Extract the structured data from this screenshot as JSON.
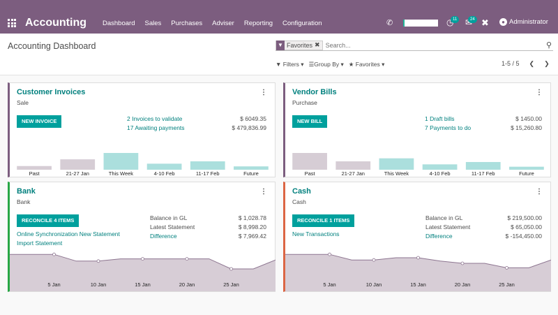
{
  "topbar": {
    "app_title": "Accounting",
    "nav": [
      "Dashboard",
      "Sales",
      "Purchases",
      "Adviser",
      "Reporting",
      "Configuration"
    ],
    "activity_count": "11",
    "message_count": "24",
    "user": "Administrator"
  },
  "control_panel": {
    "title": "Accounting Dashboard",
    "facet": "Favorites",
    "search_placeholder": "Search...",
    "filters": "Filters",
    "group_by": "Group By",
    "favorites": "Favorites",
    "pager": "1-5 / 5"
  },
  "journals": {
    "customer_invoices": {
      "title": "Customer Invoices",
      "subtitle": "Sale",
      "button": "NEW INVOICE",
      "link1": "2 Invoices to validate",
      "amount1": "$ 6049.35",
      "link2": "17 Awaiting payments",
      "amount2": "$ 479,836.99",
      "chart_data": {
        "type": "bar",
        "categories": [
          "Past",
          "21-27 Jan",
          "This Week",
          "4-10 Feb",
          "11-17 Feb",
          "Future"
        ],
        "values": [
          0.22,
          0.62,
          1.0,
          0.36,
          0.5,
          0.2
        ],
        "bar_colors": [
          "#d6cdd5",
          "#d6cdd5",
          "#abdfdd",
          "#abdfdd",
          "#abdfdd",
          "#abdfdd"
        ]
      }
    },
    "vendor_bills": {
      "title": "Vendor Bills",
      "subtitle": "Purchase",
      "button": "NEW BILL",
      "link1": "1 Draft bills",
      "amount1": "$ 1450.00",
      "link2": "7 Payments to do",
      "amount2": "$ 15,260.80",
      "chart_data": {
        "type": "bar",
        "categories": [
          "Past",
          "21-27 Jan",
          "This Week",
          "4-10 Feb",
          "11-17 Feb",
          "Future"
        ],
        "values": [
          1.0,
          0.5,
          0.68,
          0.32,
          0.46,
          0.18
        ],
        "bar_colors": [
          "#d6cdd5",
          "#d6cdd5",
          "#abdfdd",
          "#abdfdd",
          "#abdfdd",
          "#abdfdd"
        ]
      }
    },
    "bank": {
      "title": "Bank",
      "subtitle": "Bank",
      "button": "RECONCILE 4 ITEMS",
      "link1": "Online Synchronization New Statement",
      "link2": "Import Statement",
      "label_gl": "Balance in GL",
      "amount_gl": "$ 1,028.78",
      "label_stmt": "Latest Statement",
      "amount_stmt": "$ 8,998.20",
      "label_diff": "Difference",
      "amount_diff": "$ 7,969.42",
      "chart_data": {
        "type": "area",
        "x_ticks": [
          "5 Jan",
          "10 Jan",
          "15 Jan",
          "20 Jan",
          "25 Jan"
        ],
        "values": [
          0.9,
          0.9,
          0.9,
          0.6,
          0.6,
          0.7,
          0.7,
          0.7,
          0.7,
          0.7,
          0.25,
          0.25,
          0.65
        ]
      }
    },
    "cash": {
      "title": "Cash",
      "subtitle": "Cash",
      "button": "RECONCILE 1 ITEMS",
      "link1": "New Transactions",
      "label_gl": "Balance in GL",
      "amount_gl": "$ 219,500.00",
      "label_stmt": "Latest Statement",
      "amount_stmt": "$ 65,050.00",
      "label_diff": "Difference",
      "amount_diff": "$ -154,450.00",
      "chart_data": {
        "type": "area",
        "x_ticks": [
          "5 Jan",
          "10 Jan",
          "15 Jan",
          "20 Jan",
          "25 Jan"
        ],
        "values": [
          0.9,
          0.9,
          0.9,
          0.65,
          0.65,
          0.75,
          0.75,
          0.6,
          0.5,
          0.5,
          0.3,
          0.3,
          0.65
        ]
      }
    }
  }
}
